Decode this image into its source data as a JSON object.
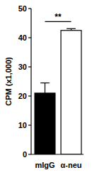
{
  "chart_data": {
    "type": "bar",
    "y_label": "CPM (x1,000)",
    "categories": [
      "mIgG",
      "α-neu"
    ],
    "values": [
      21,
      42.5
    ],
    "errors": [
      3.5,
      0.6
    ],
    "colors": [
      "#000000",
      "#ffffff"
    ],
    "ylim": [
      0,
      50
    ],
    "yticks": [
      0,
      10,
      20,
      30,
      40,
      50
    ],
    "annotations": [
      {
        "text": "**"
      }
    ]
  }
}
